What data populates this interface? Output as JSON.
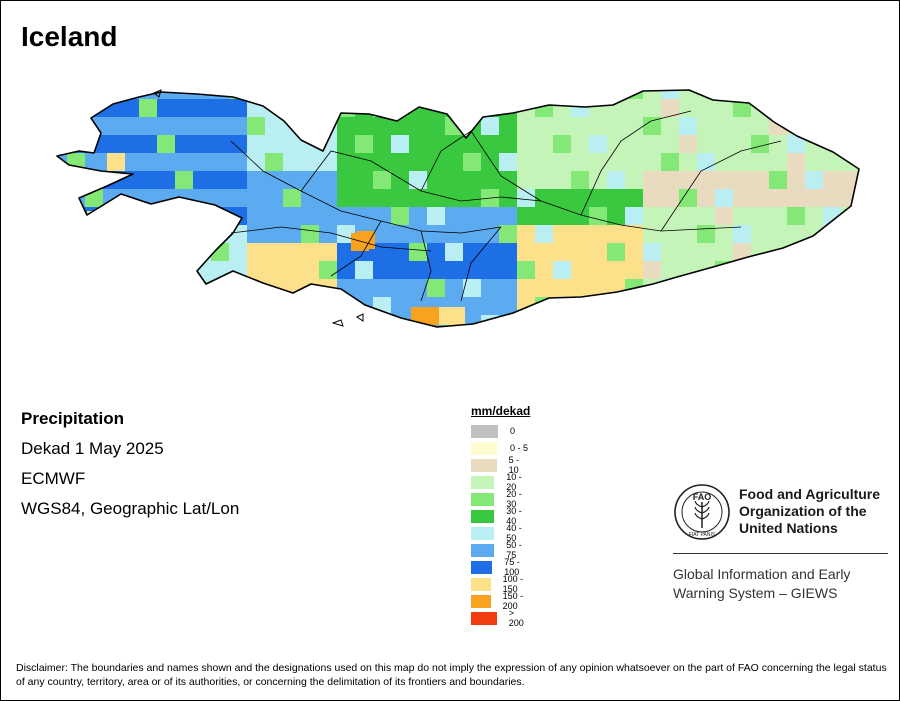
{
  "title": "Iceland",
  "info": {
    "variable": "Precipitation",
    "period": "Dekad 1 May 2025",
    "source": "ECMWF",
    "projection": "WGS84, Geographic Lat/Lon"
  },
  "legend": {
    "title": "mm/dekad",
    "items": [
      {
        "label": "0",
        "color": "#c0c0c0"
      },
      {
        "label": "0 - 5",
        "color": "#fefdd2"
      },
      {
        "label": "5 - 10",
        "color": "#e9dbbf"
      },
      {
        "label": "10 - 20",
        "color": "#c5f4b9"
      },
      {
        "label": "20 - 30",
        "color": "#84e876"
      },
      {
        "label": "30 - 40",
        "color": "#39c83f"
      },
      {
        "label": "40 - 50",
        "color": "#b9eef3"
      },
      {
        "label": "50 - 75",
        "color": "#5caaef"
      },
      {
        "label": "75 - 100",
        "color": "#1e6ee6"
      },
      {
        "label": "100 - 150",
        "color": "#fde18a"
      },
      {
        "label": "150 - 200",
        "color": "#f9a21d"
      },
      {
        "label": "> 200",
        "color": "#f13e0e"
      }
    ]
  },
  "logo": {
    "emblem_text": "FAO",
    "emblem_motto": "FIAT PANIS",
    "org_name": [
      "Food and Agriculture",
      "Organization of the",
      "United Nations"
    ],
    "system_name": [
      "Global Information and Early",
      "Warning System – GIEWS"
    ]
  },
  "disclaimer": "Disclaimer: The boundaries and names shown and the designations used on this map do not imply the expression of any opinion whatsoever on the part of FAO concerning the legal status of any country, territory, area or of its authorities, or concerning the delimitation of its frontiers and boundaries."
}
